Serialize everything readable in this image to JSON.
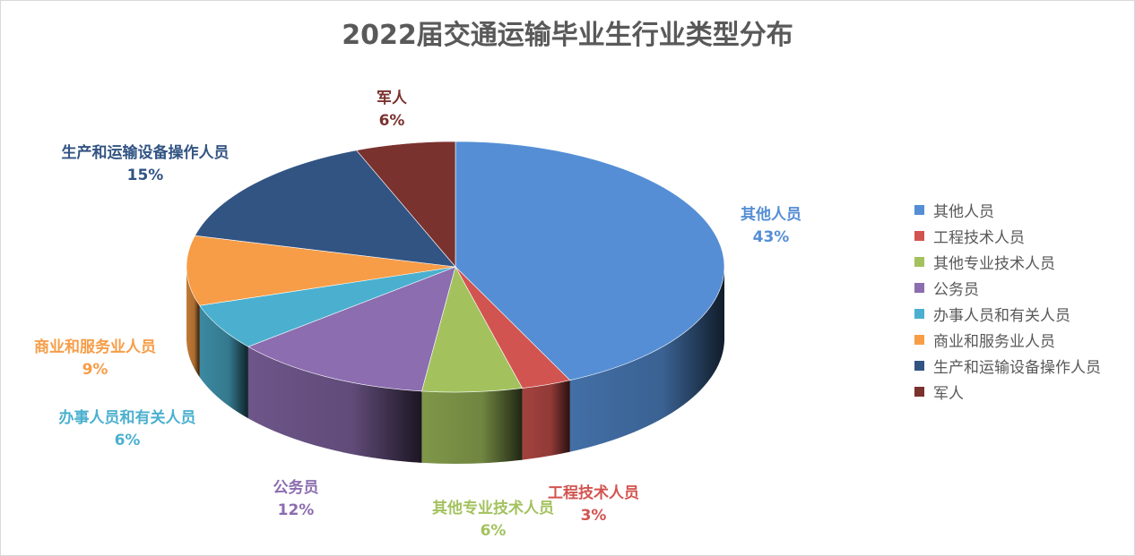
{
  "chart_data": {
    "type": "pie",
    "title": "2022届交通运输毕业生行业类型分布",
    "legend_position": "right",
    "slices": [
      {
        "label": "其他人员",
        "value": 43,
        "value_label": "43%",
        "color": "#558ed5"
      },
      {
        "label": "工程技术人员",
        "value": 3,
        "value_label": "3%",
        "color": "#d25450"
      },
      {
        "label": "其他专业技术人员",
        "value": 6,
        "value_label": "6%",
        "color": "#a3c25e"
      },
      {
        "label": "公务员",
        "value": 12,
        "value_label": "12%",
        "color": "#8c6db0"
      },
      {
        "label": "办事人员和有关人员",
        "value": 6,
        "value_label": "6%",
        "color": "#4bb0cf"
      },
      {
        "label": "商业和服务业人员",
        "value": 9,
        "value_label": "9%",
        "color": "#f79d47"
      },
      {
        "label": "生产和运输设备操作人员",
        "value": 15,
        "value_label": "15%",
        "color": "#325483"
      },
      {
        "label": "军人",
        "value": 6,
        "value_label": "6%",
        "color": "#7a322f"
      }
    ]
  }
}
